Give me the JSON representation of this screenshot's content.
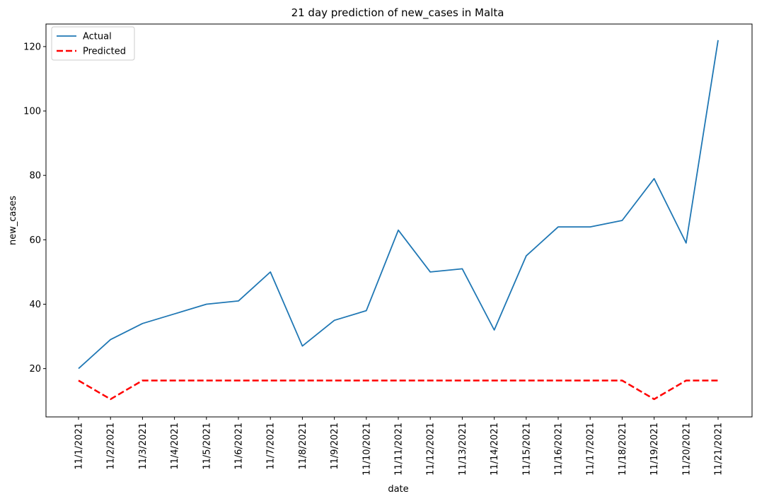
{
  "chart_data": {
    "type": "line",
    "title": "21 day prediction of new_cases in Malta",
    "xlabel": "date",
    "ylabel": "new_cases",
    "categories": [
      "11/1/2021",
      "11/2/2021",
      "11/3/2021",
      "11/4/2021",
      "11/5/2021",
      "11/6/2021",
      "11/7/2021",
      "11/8/2021",
      "11/9/2021",
      "11/10/2021",
      "11/11/2021",
      "11/12/2021",
      "11/13/2021",
      "11/14/2021",
      "11/15/2021",
      "11/16/2021",
      "11/17/2021",
      "11/18/2021",
      "11/19/2021",
      "11/20/2021",
      "11/21/2021"
    ],
    "ylim": [
      5,
      127
    ],
    "yticks": [
      20,
      40,
      60,
      80,
      100,
      120
    ],
    "grid": false,
    "legend_position": "top-left",
    "series": [
      {
        "name": "Actual",
        "color": "#1f77b4",
        "style": "solid",
        "values": [
          20,
          29,
          34,
          37,
          40,
          41,
          50,
          27,
          35,
          38,
          63,
          50,
          51,
          32,
          55,
          64,
          64,
          66,
          79,
          59,
          122
        ]
      },
      {
        "name": "Predicted",
        "color": "#ff0000",
        "style": "dashed",
        "values": [
          16.3,
          10.5,
          16.3,
          16.3,
          16.3,
          16.3,
          16.3,
          16.3,
          16.3,
          16.3,
          16.3,
          16.3,
          16.3,
          16.3,
          16.3,
          16.3,
          16.3,
          16.3,
          10.5,
          16.3,
          16.3
        ]
      }
    ]
  }
}
